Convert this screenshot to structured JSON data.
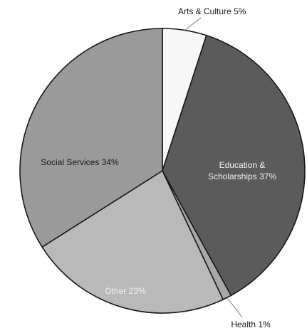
{
  "chart_data": {
    "type": "pie",
    "title": "",
    "slices": [
      {
        "label": "Arts & Culture 5%",
        "name": "Arts & Culture",
        "value": 5,
        "color": "#f7f7f7",
        "label_color": "dark",
        "outside": true
      },
      {
        "label": "Education & Scholarships 37%",
        "name": "Education & Scholarships",
        "value": 37,
        "color": "#5b5b5b",
        "label_color": "light",
        "outside": false
      },
      {
        "label": "Health 1%",
        "name": "Health",
        "value": 1,
        "color": "#a8a8a8",
        "label_color": "dark",
        "outside": true
      },
      {
        "label": "Other 23%",
        "name": "Other",
        "value": 23,
        "color": "#b9b9b9",
        "label_color": "light",
        "outside": false
      },
      {
        "label": "Social Services 34%",
        "name": "Social Services",
        "value": 34,
        "color": "#9a9a9a",
        "label_color": "dark",
        "outside": false
      }
    ],
    "start_angle_deg": 0,
    "direction": "clockwise",
    "legend": "none"
  }
}
